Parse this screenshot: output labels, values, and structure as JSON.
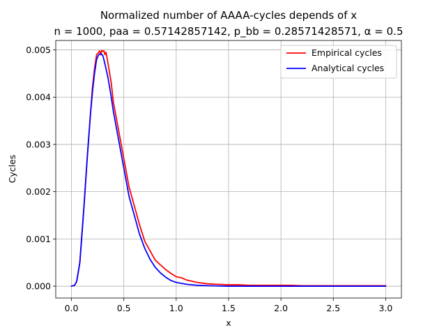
{
  "chart_data": {
    "type": "line",
    "title": "Normalized number of AAAA-cycles depends of x",
    "subtitle": "n = 1000, paa = 0.57142857142, p_bb = 0.28571428571, α = 0.5",
    "xlabel": "x",
    "ylabel": "Cycles",
    "xlim": [
      -0.15,
      3.15
    ],
    "ylim": [
      -0.00025,
      0.0052
    ],
    "xticks": [
      0.0,
      0.5,
      1.0,
      1.5,
      2.0,
      2.5,
      3.0
    ],
    "xtick_labels": [
      "0.0",
      "0.5",
      "1.0",
      "1.5",
      "2.0",
      "2.5",
      "3.0"
    ],
    "yticks": [
      0.0,
      0.001,
      0.002,
      0.003,
      0.004,
      0.005
    ],
    "ytick_labels": [
      "0.000",
      "0.001",
      "0.002",
      "0.003",
      "0.004",
      "0.005"
    ],
    "grid": true,
    "legend_position": "top-right",
    "series": [
      {
        "name": "Empirical cycles",
        "color": "#ff0000",
        "x": [
          0.0,
          0.03,
          0.05,
          0.08,
          0.1,
          0.12,
          0.15,
          0.18,
          0.2,
          0.22,
          0.24,
          0.26,
          0.27,
          0.28,
          0.29,
          0.3,
          0.31,
          0.32,
          0.33,
          0.35,
          0.38,
          0.4,
          0.45,
          0.5,
          0.55,
          0.6,
          0.65,
          0.7,
          0.75,
          0.8,
          0.85,
          0.9,
          0.95,
          1.0,
          1.05,
          1.1,
          1.2,
          1.3,
          1.4,
          1.5,
          1.6,
          1.7,
          1.8,
          1.9,
          2.0,
          2.1,
          2.2,
          2.3,
          2.4,
          2.5,
          2.6,
          2.7,
          2.8,
          2.9,
          3.0
        ],
        "y": [
          0.0,
          2e-05,
          0.0001,
          0.0005,
          0.0011,
          0.0017,
          0.0027,
          0.0036,
          0.0042,
          0.0046,
          0.0049,
          0.00495,
          0.00498,
          0.0049,
          0.00499,
          0.00497,
          0.00498,
          0.0049,
          0.00495,
          0.0047,
          0.0043,
          0.0039,
          0.0033,
          0.0027,
          0.0021,
          0.0017,
          0.0013,
          0.00095,
          0.00075,
          0.00055,
          0.00045,
          0.00035,
          0.00027,
          0.0002,
          0.00018,
          0.00013,
          8e-05,
          5e-05,
          4e-05,
          3e-05,
          3e-05,
          2e-05,
          2e-05,
          2e-05,
          2e-05,
          2e-05,
          1e-05,
          1e-05,
          1e-05,
          1e-05,
          1e-05,
          1e-05,
          1e-05,
          1e-05,
          1e-05
        ]
      },
      {
        "name": "Analytical cycles",
        "color": "#0000ff",
        "x": [
          0.0,
          0.03,
          0.05,
          0.08,
          0.1,
          0.12,
          0.15,
          0.18,
          0.2,
          0.22,
          0.24,
          0.26,
          0.28,
          0.3,
          0.32,
          0.35,
          0.38,
          0.4,
          0.45,
          0.5,
          0.55,
          0.6,
          0.65,
          0.7,
          0.75,
          0.8,
          0.85,
          0.9,
          0.95,
          1.0,
          1.1,
          1.2,
          1.3,
          1.4,
          1.5,
          1.6,
          1.8,
          2.0,
          2.5,
          3.0
        ],
        "y": [
          0.0,
          2e-05,
          0.0001,
          0.0005,
          0.0011,
          0.0017,
          0.0027,
          0.0036,
          0.0041,
          0.0045,
          0.0048,
          0.0049,
          0.00492,
          0.00488,
          0.0047,
          0.0044,
          0.004,
          0.0037,
          0.0031,
          0.0025,
          0.0019,
          0.0015,
          0.0011,
          0.0008,
          0.00057,
          0.0004,
          0.00028,
          0.00019,
          0.00012,
          8e-05,
          4e-05,
          2e-05,
          1e-05,
          5e-06,
          0.0,
          0.0,
          0.0,
          0.0,
          0.0,
          0.0
        ]
      }
    ]
  }
}
